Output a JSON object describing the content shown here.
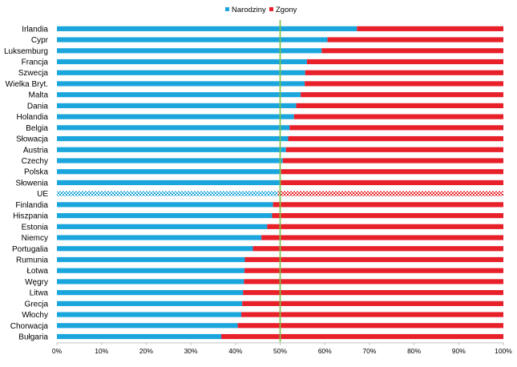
{
  "chart_data": {
    "type": "bar",
    "orientation": "horizontal",
    "stacked": "percent",
    "legend": {
      "position": "top-center"
    },
    "series": [
      {
        "name": "Narodziny",
        "color": "#1aa6dd"
      },
      {
        "name": "Zgony",
        "color": "#e8202a"
      }
    ],
    "categories": [
      "Irlandia",
      "Cypr",
      "Luksemburg",
      "Francja",
      "Szwecja",
      "Wielka Bryt.",
      "Malta",
      "Dania",
      "Holandia",
      "Belgia",
      "Słowacja",
      "Austria",
      "Czechy",
      "Polska",
      "Słowenia",
      "UE",
      "Finlandia",
      "Hiszpania",
      "Estonia",
      "Niemcy",
      "Portugalia",
      "Rumunia",
      "Łotwa",
      "Węgry",
      "Litwa",
      "Grecja",
      "Włochy",
      "Chorwacja",
      "Bułgaria"
    ],
    "values": [
      67.2,
      60.6,
      59.3,
      56.0,
      55.6,
      55.5,
      54.6,
      53.6,
      53.1,
      52.1,
      51.8,
      51.3,
      50.6,
      50.2,
      50.1,
      49.5,
      48.4,
      48.2,
      47.1,
      45.8,
      43.9,
      42.1,
      42.0,
      41.9,
      41.7,
      41.5,
      41.3,
      40.5,
      36.8
    ],
    "highlight_category": "UE",
    "reference_line": {
      "x": 50,
      "color": "#7ac143"
    },
    "xlim": [
      0,
      100
    ],
    "x_ticks": [
      "0%",
      "10%",
      "20%",
      "30%",
      "40%",
      "50%",
      "60%",
      "70%",
      "80%",
      "90%",
      "100%"
    ],
    "grid": false,
    "xlabel": "",
    "ylabel": ""
  }
}
